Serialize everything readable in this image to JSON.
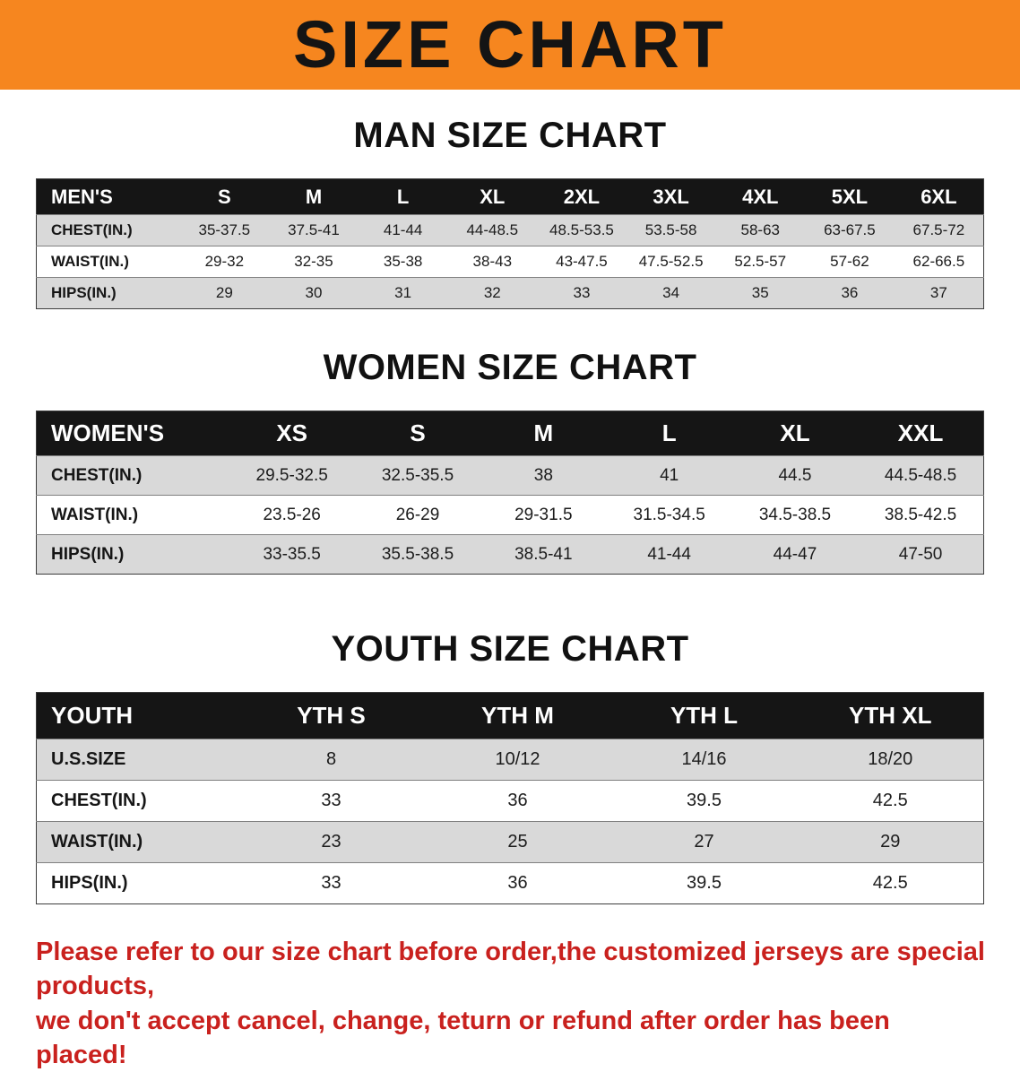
{
  "colors": {
    "banner_bg": "#f6861f",
    "banner_text": "#141414",
    "table_header_bg": "#151515",
    "table_header_text": "#ffffff",
    "row_stripe": "#d9d9d9",
    "disclaimer_text": "#c9211e"
  },
  "banner": {
    "title": "SIZE CHART"
  },
  "sections": [
    {
      "heading": "MAN SIZE CHART",
      "table": {
        "header": [
          "MEN'S",
          "S",
          "M",
          "L",
          "XL",
          "2XL",
          "3XL",
          "4XL",
          "5XL",
          "6XL"
        ],
        "rows": [
          {
            "label": "CHEST(IN.)",
            "values": [
              "35-37.5",
              "37.5-41",
              "41-44",
              "44-48.5",
              "48.5-53.5",
              "53.5-58",
              "58-63",
              "63-67.5",
              "67.5-72"
            ]
          },
          {
            "label": "WAIST(IN.)",
            "values": [
              "29-32",
              "32-35",
              "35-38",
              "38-43",
              "43-47.5",
              "47.5-52.5",
              "52.5-57",
              "57-62",
              "62-66.5"
            ]
          },
          {
            "label": "HIPS(IN.)",
            "values": [
              "29",
              "30",
              "31",
              "32",
              "33",
              "34",
              "35",
              "36",
              "37"
            ]
          }
        ]
      }
    },
    {
      "heading": "WOMEN SIZE CHART",
      "table": {
        "header": [
          "WOMEN'S",
          "XS",
          "S",
          "M",
          "L",
          "XL",
          "XXL"
        ],
        "rows": [
          {
            "label": "CHEST(IN.)",
            "values": [
              "29.5-32.5",
              "32.5-35.5",
              "38",
              "41",
              "44.5",
              "44.5-48.5"
            ]
          },
          {
            "label": "WAIST(IN.)",
            "values": [
              "23.5-26",
              "26-29",
              "29-31.5",
              "31.5-34.5",
              "34.5-38.5",
              "38.5-42.5"
            ]
          },
          {
            "label": "HIPS(IN.)",
            "values": [
              "33-35.5",
              "35.5-38.5",
              "38.5-41",
              "41-44",
              "44-47",
              "47-50"
            ]
          }
        ]
      }
    },
    {
      "heading": "YOUTH SIZE CHART",
      "table": {
        "header": [
          "YOUTH",
          "YTH S",
          "YTH M",
          "YTH L",
          "YTH XL"
        ],
        "rows": [
          {
            "label": "U.S.SIZE",
            "values": [
              "8",
              "10/12",
              "14/16",
              "18/20"
            ]
          },
          {
            "label": "CHEST(IN.)",
            "values": [
              "33",
              "36",
              "39.5",
              "42.5"
            ]
          },
          {
            "label": "WAIST(IN.)",
            "values": [
              "23",
              "25",
              "27",
              "29"
            ]
          },
          {
            "label": "HIPS(IN.)",
            "values": [
              "33",
              "36",
              "39.5",
              "42.5"
            ]
          }
        ]
      }
    }
  ],
  "disclaimer": {
    "lines": [
      "Please refer to our size chart before order,the customized jerseys are special products,",
      "we don't accept cancel, change, teturn or refund after order has been placed!"
    ]
  }
}
